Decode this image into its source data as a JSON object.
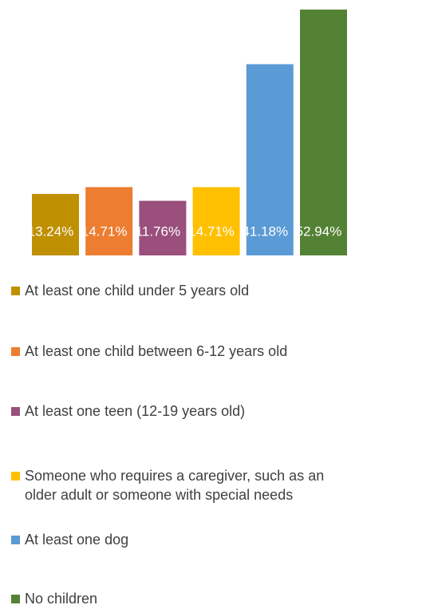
{
  "chart_data": {
    "type": "bar",
    "series": [
      {
        "name": "At least one child under 5 years old",
        "color": "#bf9000",
        "values": [
          13.24
        ],
        "value_labels": [
          "13.24%"
        ]
      },
      {
        "name": "At least one child between 6-12 years old",
        "color": "#ed7d31",
        "values": [
          14.71
        ],
        "value_labels": [
          "14.71%"
        ]
      },
      {
        "name": "At least one teen (12-19 years old)",
        "color": "#9a4f7c",
        "values": [
          11.76
        ],
        "value_labels": [
          "11.76%"
        ]
      },
      {
        "name": "Someone who requires a caregiver, such as an older adult or someone with special needs",
        "color": "#ffc000",
        "values": [
          14.71
        ],
        "value_labels": [
          "14.71%"
        ]
      },
      {
        "name": "At least one dog",
        "color": "#5b9bd5",
        "values": [
          41.18
        ],
        "value_labels": [
          "41.18%"
        ]
      },
      {
        "name": "No children",
        "color": "#548235",
        "values": [
          52.94
        ],
        "value_labels": [
          "52.94%"
        ]
      }
    ],
    "ylim": [
      0,
      55
    ],
    "legend": "bottom"
  }
}
